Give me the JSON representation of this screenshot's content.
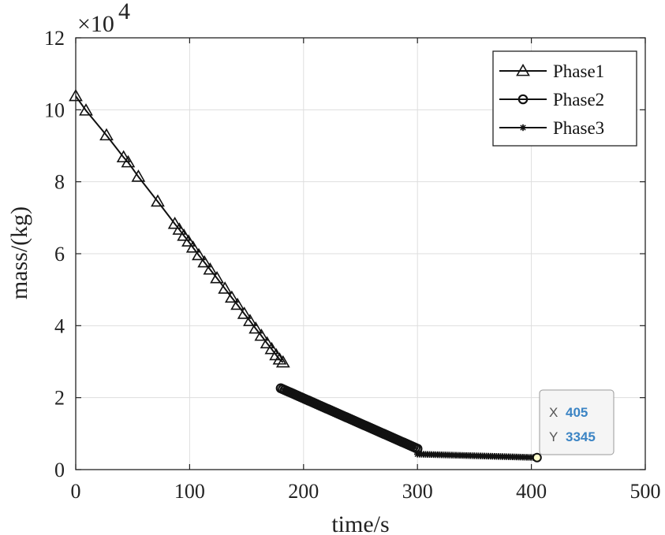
{
  "chart_data": {
    "type": "line",
    "xlabel": "time/s",
    "ylabel": "mass/(kg)",
    "xlim": [
      0,
      500
    ],
    "ylim": [
      0,
      120000
    ],
    "xticks": [
      0,
      100,
      200,
      300,
      400,
      500
    ],
    "yticks": [
      0,
      20000,
      40000,
      60000,
      80000,
      100000,
      120000
    ],
    "y_tick_labels": [
      "0",
      "2",
      "4",
      "6",
      "8",
      "10",
      "12"
    ],
    "y_exponent_base": "×10",
    "y_exponent_power": "4",
    "grid": true,
    "legend_position": "top-right",
    "series": [
      {
        "name": "Phase1",
        "marker": "triangle",
        "x": [
          0,
          9,
          27,
          42,
          46,
          55,
          72,
          87,
          91,
          95,
          99,
          103,
          108,
          113,
          118,
          124,
          131,
          137,
          142,
          148,
          153,
          158,
          163,
          168,
          172,
          176,
          179,
          182
        ],
        "y": [
          103800,
          99800,
          92900,
          86800,
          85400,
          81400,
          74500,
          68300,
          66700,
          65000,
          63400,
          61700,
          59600,
          57600,
          55600,
          53200,
          50300,
          47800,
          45800,
          43300,
          41300,
          39200,
          37200,
          35100,
          33500,
          31800,
          30600,
          29800
        ]
      },
      {
        "name": "Phase2",
        "marker": "circle",
        "x": [
          180,
          300
        ],
        "y": [
          22600,
          5800
        ]
      },
      {
        "name": "Phase3",
        "marker": "star",
        "x": [
          300,
          405
        ],
        "y": [
          4300,
          3345
        ]
      }
    ],
    "datatip": {
      "x_label": "X",
      "x_value": "405",
      "y_label": "Y",
      "y_value": "3345",
      "x": 405,
      "y": 3345
    }
  }
}
